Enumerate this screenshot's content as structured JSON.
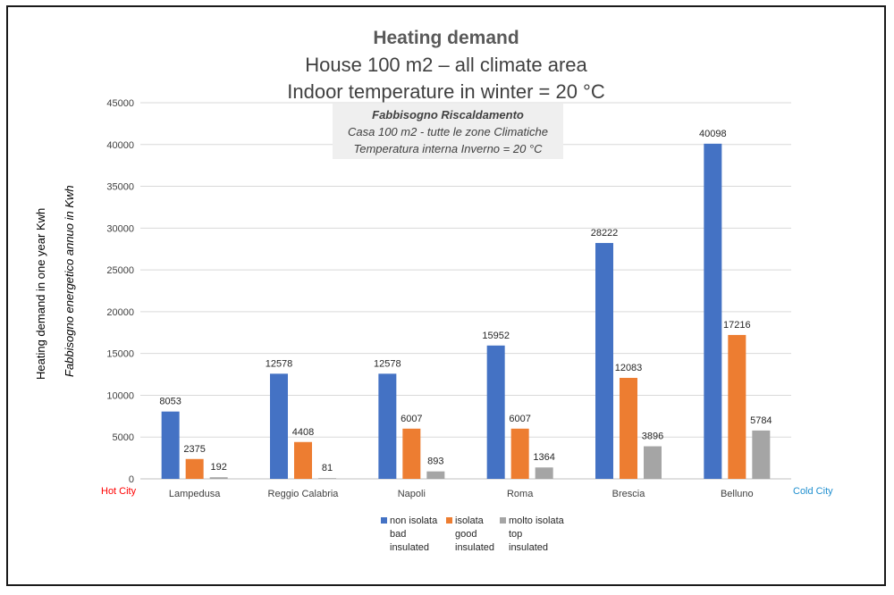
{
  "titles": {
    "line1": "Heating demand",
    "line2": "House 100 m2 – all climate area",
    "line3": "Indoor temperature in winter = 20 °C"
  },
  "note": {
    "line1": "Fabbisogno Riscaldamento",
    "line2": "Casa 100 m2 - tutte le zone Climatiche",
    "line3": "Temperatura interna Inverno = 20 °C"
  },
  "ylabel_en": "Heating demand  in one year Kwh",
  "ylabel_it": "Fabbisogno energetico annuo  in Kwh",
  "hot_city": "Hot City",
  "cold_city": "Cold City",
  "chart_data": {
    "type": "bar",
    "title": "Heating demand",
    "ylabel": "Heating demand  in one year Kwh",
    "ylim": [
      0,
      45000
    ],
    "yticks": [
      0,
      5000,
      10000,
      15000,
      20000,
      25000,
      30000,
      35000,
      40000,
      45000
    ],
    "grid": true,
    "legend_position": "bottom",
    "categories": [
      "Lampedusa",
      "Reggio Calabria",
      "Napoli",
      "Roma",
      "Brescia",
      "Belluno"
    ],
    "series": [
      {
        "name": "non isolata",
        "sub1": "bad",
        "sub2": "insulated",
        "color": "#4472c4",
        "values": [
          8053,
          12578,
          12578,
          15952,
          28222,
          40098
        ]
      },
      {
        "name": "isolata",
        "sub1": "good",
        "sub2": "insulated",
        "color": "#ed7d31",
        "values": [
          2375,
          4408,
          6007,
          6007,
          12083,
          17216
        ]
      },
      {
        "name": "molto isolata",
        "sub1": "top",
        "sub2": "insulated",
        "color": "#a5a5a5",
        "values": [
          192,
          81,
          893,
          1364,
          3896,
          5784
        ]
      }
    ]
  }
}
